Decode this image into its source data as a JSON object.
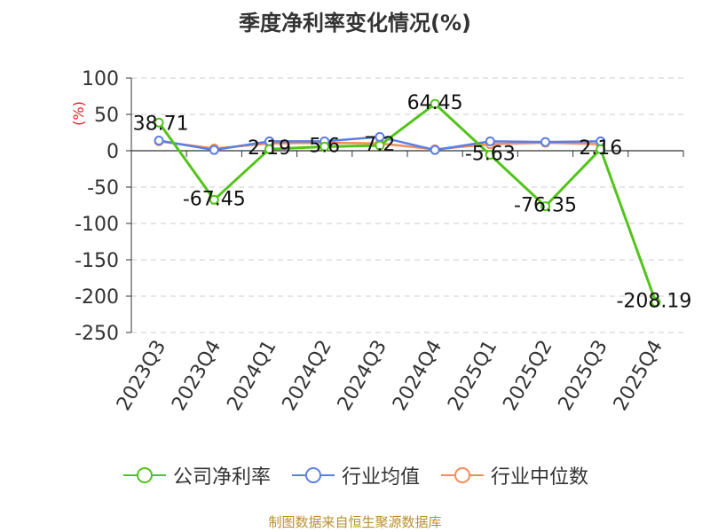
{
  "chart_data": {
    "type": "line",
    "title": "季度净利率变化情况(%)",
    "ylabel": "(%)",
    "xlabel": "",
    "ylim": [
      -250,
      100
    ],
    "yticks": [
      100,
      50,
      0,
      -50,
      -100,
      -150,
      -200,
      -250
    ],
    "grid": true,
    "legend_position": "bottom",
    "categories": [
      "2023Q3",
      "2023Q4",
      "2024Q1",
      "2024Q2",
      "2024Q3",
      "2024Q4",
      "2025Q1",
      "2025Q2",
      "2025Q3",
      "2025Q4"
    ],
    "series": [
      {
        "name": "公司净利率",
        "color": "#52c41a",
        "values": [
          38.71,
          -67.45,
          2.19,
          5.6,
          7.2,
          64.45,
          -5.63,
          -76.35,
          2.16,
          -208.19
        ],
        "data_labels": [
          "38.71",
          "-67.45",
          "2.19",
          "5.6",
          "7.2",
          "64.45",
          "-5.63",
          "-76.35",
          "2.16",
          "-208.19"
        ]
      },
      {
        "name": "行业均值",
        "color": "#5b7ee5",
        "values": [
          14,
          1,
          13,
          13,
          19,
          1,
          13,
          12,
          13,
          null
        ]
      },
      {
        "name": "行业中位数",
        "color": "#f58a5a",
        "values": [
          13,
          3,
          10,
          11,
          10,
          2,
          9,
          11,
          9,
          null
        ]
      }
    ]
  },
  "source_text": "制图数据来自恒生聚源数据库"
}
